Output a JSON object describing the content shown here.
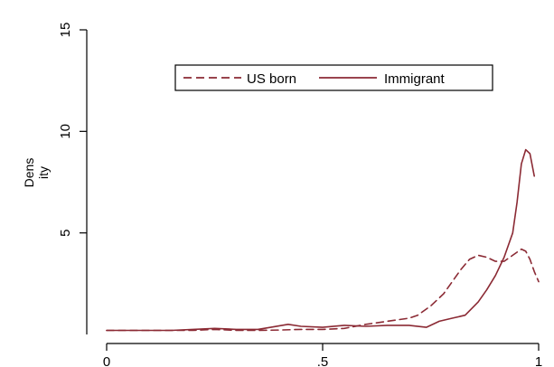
{
  "chart_data": {
    "type": "line",
    "title": "",
    "xlabel": "",
    "ylabel_lines": [
      "Dens",
      "ity"
    ],
    "xlim": [
      0,
      1
    ],
    "ylim": [
      0,
      15
    ],
    "x_ticks": [
      {
        "value": 0,
        "label": "0"
      },
      {
        "value": 0.5,
        "label": ".5"
      },
      {
        "value": 1,
        "label": "1"
      }
    ],
    "y_ticks": [
      {
        "value": 5,
        "label": "5"
      },
      {
        "value": 10,
        "label": "10"
      },
      {
        "value": 15,
        "label": "15"
      }
    ],
    "grid": false,
    "legend_placement": "top-center",
    "series": [
      {
        "name": "US born",
        "style": "dashed",
        "color": "#8b2a34",
        "x": [
          0.0,
          0.05,
          0.1,
          0.15,
          0.2,
          0.25,
          0.3,
          0.35,
          0.4,
          0.45,
          0.5,
          0.55,
          0.6,
          0.65,
          0.7,
          0.72,
          0.75,
          0.78,
          0.8,
          0.82,
          0.84,
          0.86,
          0.88,
          0.9,
          0.92,
          0.94,
          0.96,
          0.97,
          0.98,
          0.99,
          1.0
        ],
        "y": [
          0.2,
          0.2,
          0.2,
          0.2,
          0.2,
          0.25,
          0.2,
          0.2,
          0.22,
          0.25,
          0.25,
          0.3,
          0.5,
          0.65,
          0.8,
          0.95,
          1.4,
          2.0,
          2.6,
          3.2,
          3.7,
          3.9,
          3.8,
          3.6,
          3.6,
          3.9,
          4.2,
          4.1,
          3.7,
          3.1,
          2.6
        ]
      },
      {
        "name": "Immigrant",
        "style": "solid",
        "color": "#8b2a34",
        "x": [
          0.0,
          0.05,
          0.1,
          0.15,
          0.2,
          0.25,
          0.3,
          0.35,
          0.38,
          0.42,
          0.45,
          0.5,
          0.55,
          0.6,
          0.65,
          0.7,
          0.74,
          0.77,
          0.8,
          0.83,
          0.86,
          0.88,
          0.9,
          0.92,
          0.94,
          0.95,
          0.96,
          0.97,
          0.98,
          0.99
        ],
        "y": [
          0.2,
          0.2,
          0.2,
          0.2,
          0.25,
          0.3,
          0.25,
          0.25,
          0.35,
          0.5,
          0.4,
          0.35,
          0.45,
          0.4,
          0.45,
          0.45,
          0.35,
          0.65,
          0.8,
          0.95,
          1.6,
          2.2,
          2.9,
          3.8,
          5.0,
          6.5,
          8.4,
          9.1,
          8.9,
          7.8
        ]
      }
    ]
  },
  "colors": {
    "series": "#8b2a34",
    "axis": "#000000",
    "background": "#ffffff"
  }
}
